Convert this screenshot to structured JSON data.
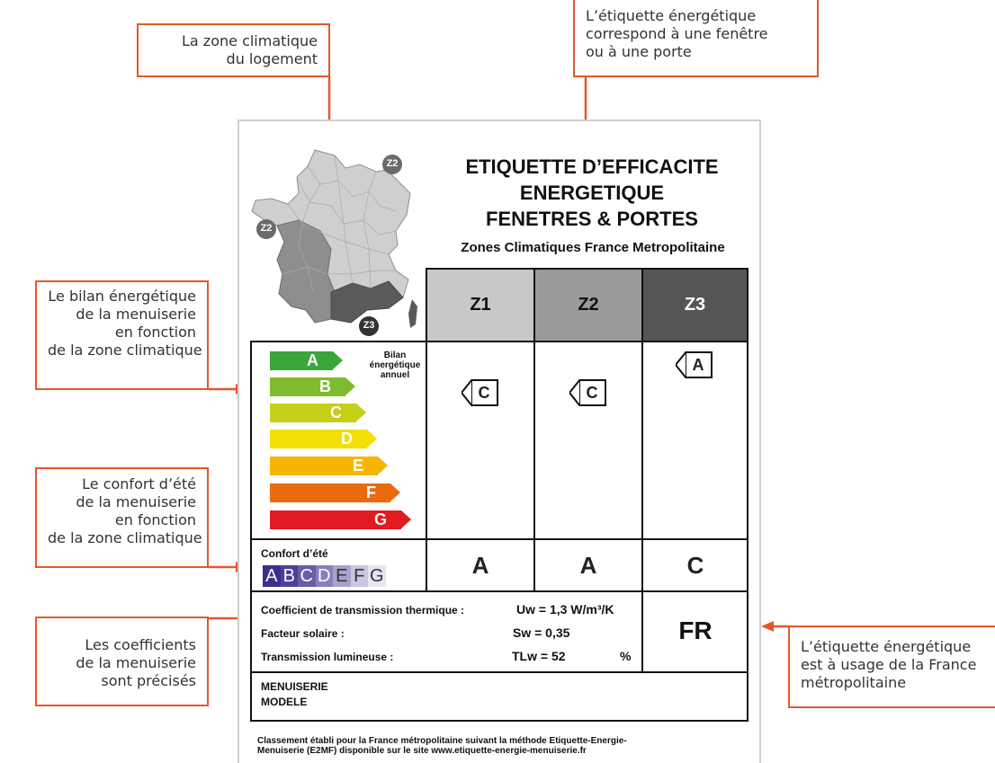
{
  "callouts": {
    "zone": [
      "La zone climatique",
      "du logement"
    ],
    "type": [
      "L’étiquette énergétique",
      "correspond à une fenêtre",
      "ou à une porte"
    ],
    "bilan": [
      "Le bilan énergétique",
      "de la menuiserie",
      "en fonction",
      "de la zone climatique"
    ],
    "confort": [
      "Le confort d’été",
      "de la menuiserie",
      "en fonction",
      "de la zone climatique"
    ],
    "coefs": [
      "Les coefficients",
      "de la menuiserie",
      "sont précisés"
    ],
    "france": [
      "L’étiquette énergétique",
      "est à usage de la France",
      "métropolitaine"
    ]
  },
  "label": {
    "title": [
      "ETIQUETTE D’EFFICACITE",
      "ENERGETIQUE",
      "FENETRES & PORTES"
    ],
    "subtitle": "Zones Climatiques France Metropolitaine",
    "map_badges": [
      "Z2",
      "Z2",
      "Z3"
    ],
    "zones": [
      "Z1",
      "Z2",
      "Z3"
    ],
    "energy_scale": [
      "A",
      "B",
      "C",
      "D",
      "E",
      "F",
      "G"
    ],
    "energy_colors": [
      "#3aa53b",
      "#7fbc2d",
      "#c5cf1a",
      "#f1e004",
      "#f6b600",
      "#ec6a0f",
      "#e21a22"
    ],
    "bilan_label": [
      "Bilan",
      "énergétique",
      "annuel"
    ],
    "bilan_ratings": [
      "C",
      "C",
      "A"
    ],
    "confort_label": "Confort d’été",
    "confort_scale": [
      "A",
      "B",
      "C",
      "D",
      "E",
      "F",
      "G"
    ],
    "confort_colors": [
      "#3d2f8e",
      "#4e3f98",
      "#6a5ca8",
      "#8a7fbb",
      "#aaa2cd",
      "#cac6e0",
      "#e6e4f0"
    ],
    "confort_ratings": [
      "A",
      "A",
      "C"
    ],
    "coefficients": {
      "uw_label": "Coefficient de transmission thermique :",
      "uw_value": "Uw = 1,3 W/m³/K",
      "sw_label": "Facteur solaire :",
      "sw_value": "Sw = 0,35",
      "tl_label": "Transmission lumineuse :",
      "tl_value": "TLw = 52",
      "tl_unit": "%"
    },
    "country": "FR",
    "menuiserie": "MENUISERIE",
    "modele": "MODELE",
    "footnote": [
      "Classement établi pour la France métropolitaine suivant la méthode Etiquette-Energie-",
      "Menuiserie (E2MF) disponible sur le site www.etiquette-energie-menuiserie.fr"
    ]
  },
  "colors": {
    "accent": "#e2582c",
    "zone1": "#c8c8c8",
    "zone2": "#9a9a9a",
    "zone3": "#555555"
  }
}
